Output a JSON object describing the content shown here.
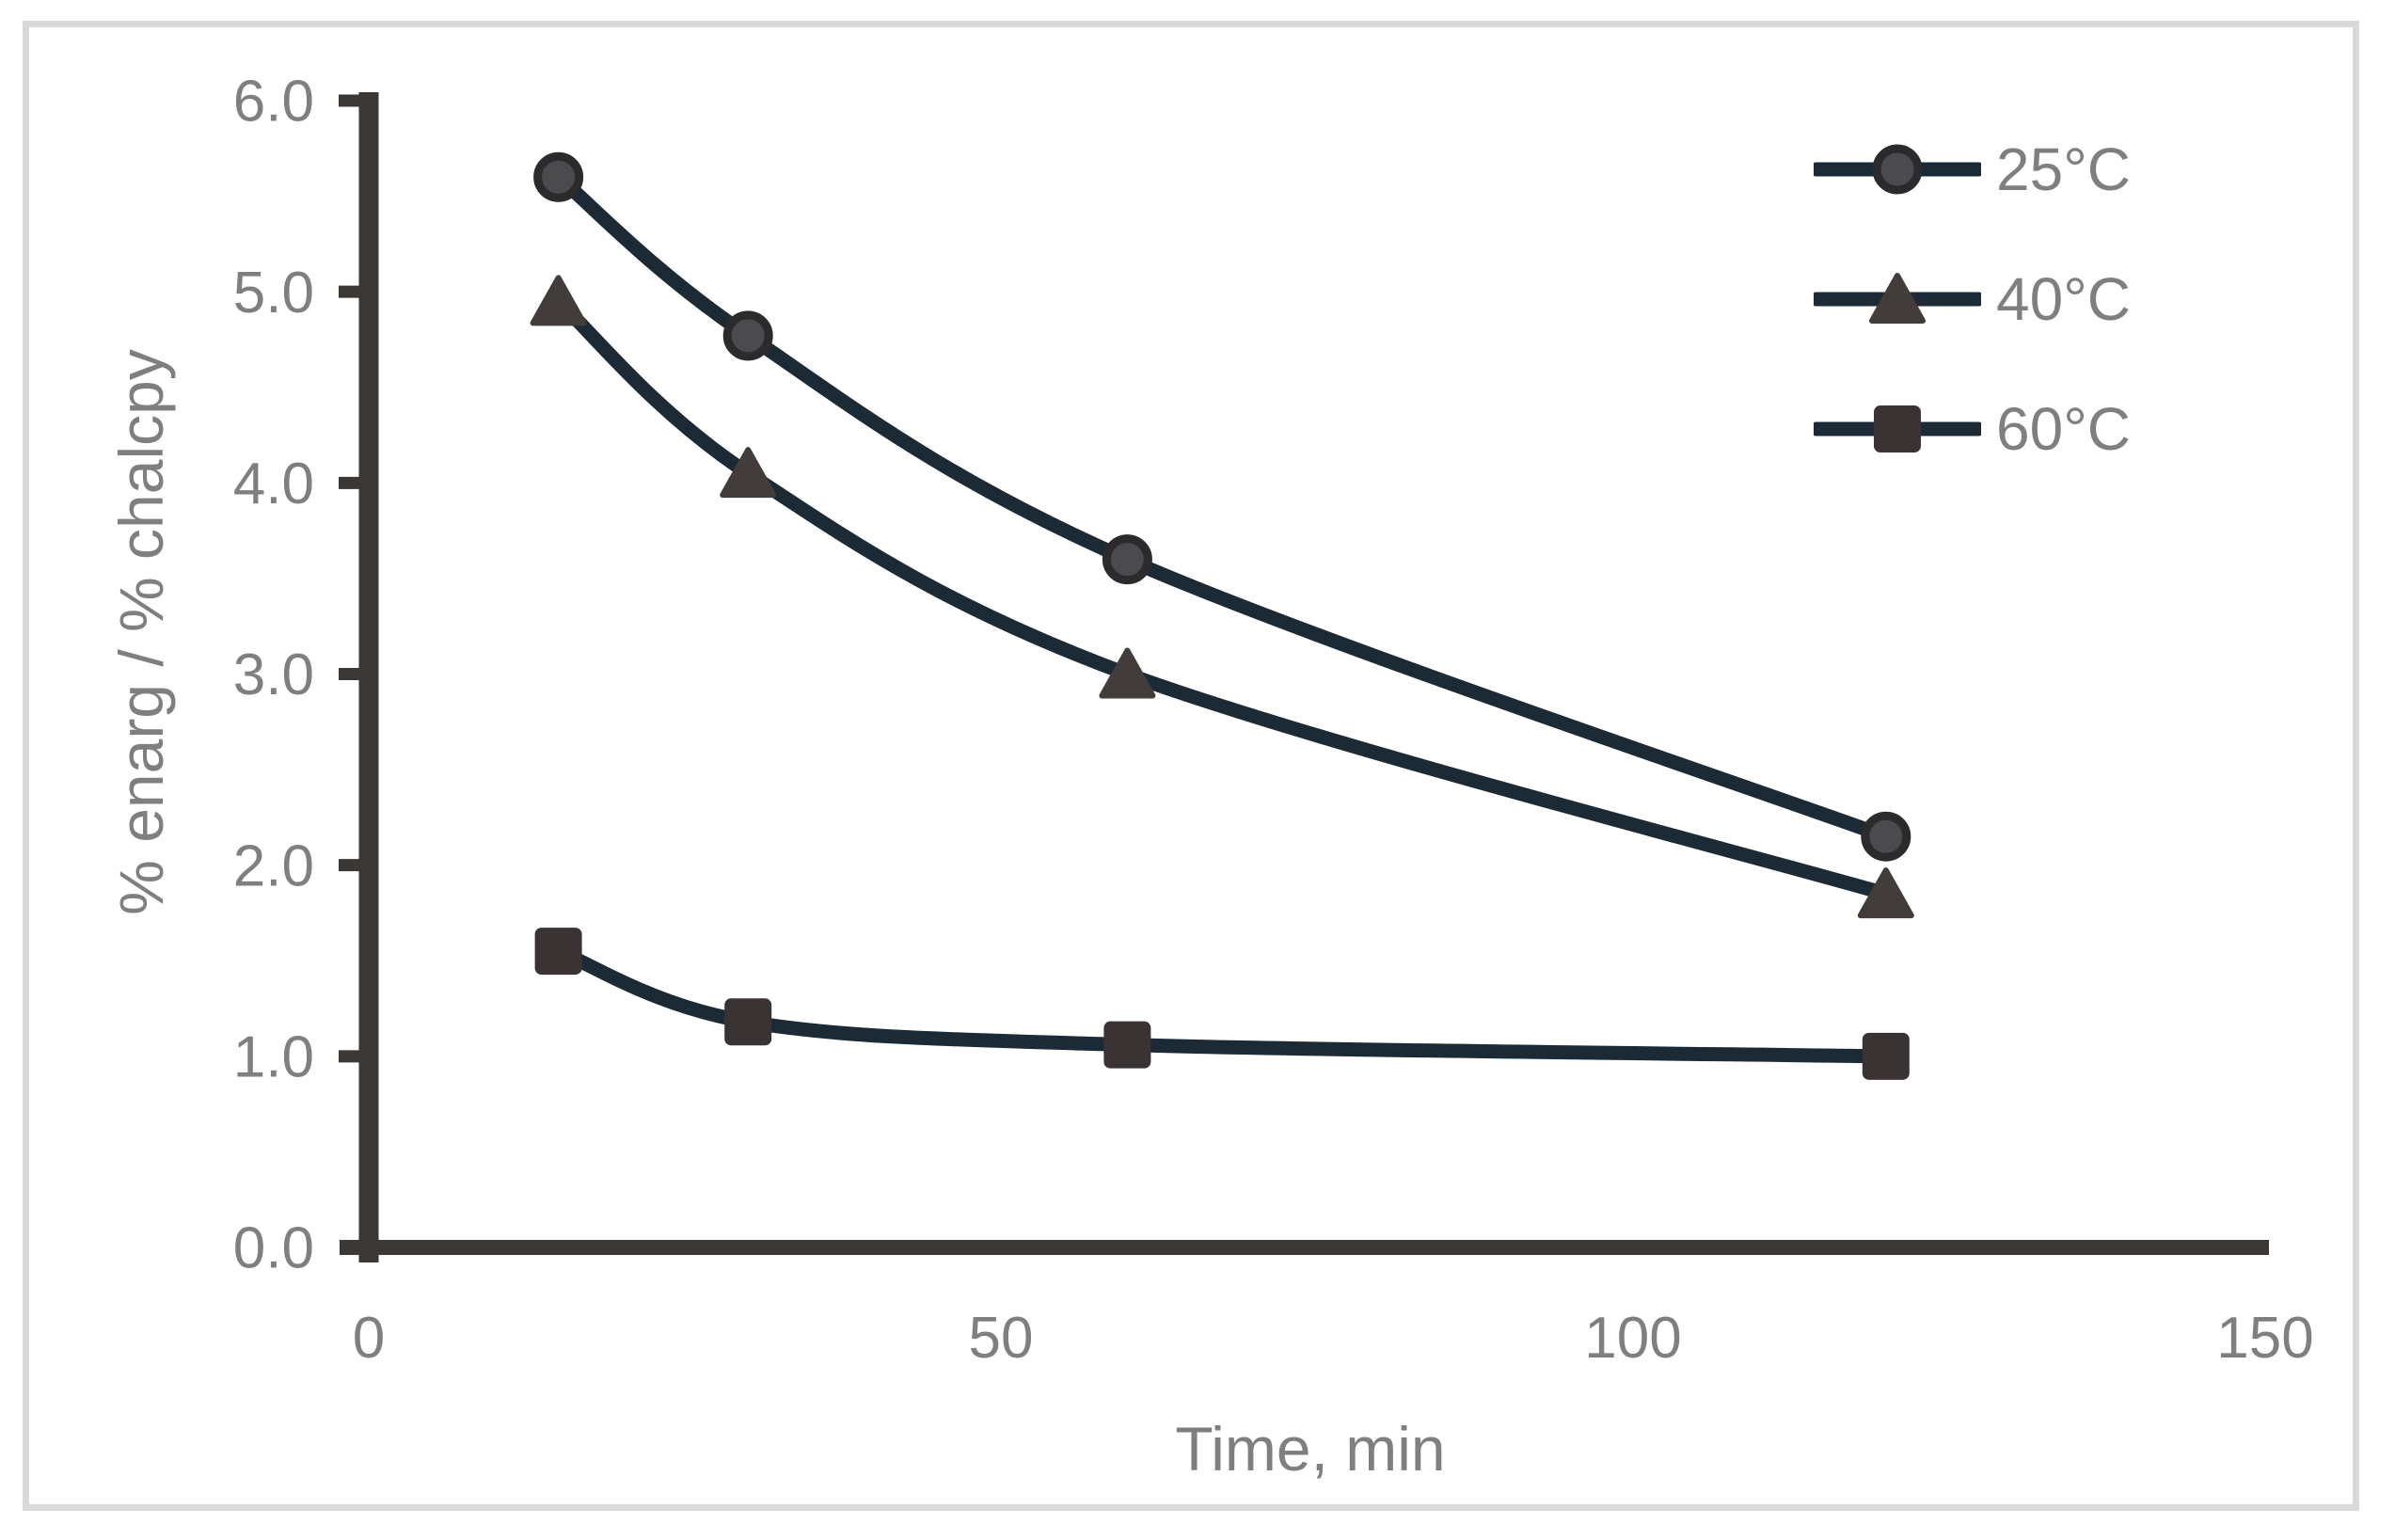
{
  "figure": {
    "background": "#ffffff",
    "border_color": "#d9d9d9"
  },
  "chart_data": {
    "type": "line",
    "title": "",
    "xlabel": "Time, min",
    "ylabel": "% enarg / % chalcpy",
    "x": [
      15,
      30,
      60,
      120
    ],
    "series": [
      {
        "name": "25°C",
        "marker": "circle",
        "values": [
          5.6,
          4.77,
          3.6,
          2.15
        ]
      },
      {
        "name": "40°C",
        "marker": "triangle",
        "values": [
          4.95,
          4.05,
          3.0,
          1.85
        ]
      },
      {
        "name": "60°C",
        "marker": "square",
        "values": [
          1.55,
          1.18,
          1.06,
          1.0
        ]
      }
    ],
    "xlim": [
      0,
      150
    ],
    "ylim": [
      0.0,
      6.0
    ],
    "x_tick_labels": [
      "0",
      "50",
      "100",
      "150"
    ],
    "x_tick_values": [
      0,
      50,
      100,
      150
    ],
    "y_tick_labels": [
      "6.0",
      "5.0",
      "4.0",
      "3.0",
      "2.0",
      "1.0",
      "0.0"
    ],
    "y_tick_values": [
      6.0,
      5.0,
      4.0,
      3.0,
      2.0,
      1.0,
      0.0
    ],
    "grid": false,
    "line_smoothing": true,
    "legend_position": "inside-top-right",
    "colors": {
      "line": "#1c2a35",
      "axis": "#3a3735",
      "tick_text": "#7f7f7f",
      "circle_inner": "#4b4b4d",
      "circle_outer": "#2b2b2d",
      "triangle": "#423c3b",
      "square": "#3a3334"
    }
  }
}
